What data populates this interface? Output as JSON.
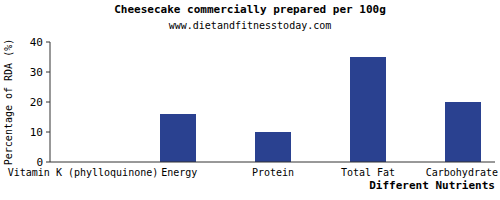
{
  "chart_data": {
    "type": "bar",
    "title": "Cheesecake commercially prepared per 100g",
    "subtitle": "www.dietandfitnesstoday.com",
    "x_label": "Different Nutrients",
    "y_label": "Percentage of RDA (%)",
    "categories": [
      "Vitamin K (phylloquinone)",
      "Energy",
      "Protein",
      "Total Fat",
      "Carbohydrate"
    ],
    "values": [
      0,
      16,
      10,
      35,
      20
    ],
    "color": "#2a4190",
    "ylim": [
      0,
      40
    ],
    "yticks": [
      0,
      10,
      20,
      30,
      40
    ],
    "grid": false
  }
}
